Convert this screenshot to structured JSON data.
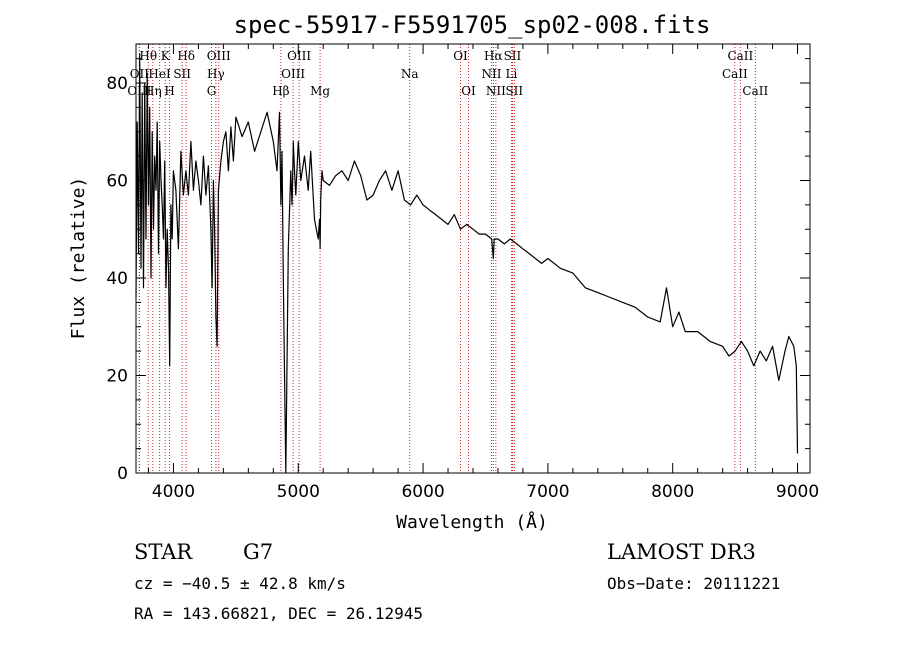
{
  "chart_data": {
    "type": "line",
    "title": "spec-55917-F5591705_sp02-008.fits",
    "xlabel": "Wavelength (Å)",
    "ylabel": "Flux (relative)",
    "xlim": [
      3700,
      9100
    ],
    "ylim": [
      0,
      88
    ],
    "xticks": [
      4000,
      5000,
      6000,
      7000,
      8000,
      9000
    ],
    "yticks": [
      0,
      20,
      40,
      60,
      80
    ],
    "series": [
      {
        "name": "flux",
        "x": [
          3700,
          3710,
          3720,
          3730,
          3740,
          3750,
          3760,
          3770,
          3780,
          3790,
          3800,
          3810,
          3820,
          3830,
          3840,
          3850,
          3860,
          3870,
          3880,
          3890,
          3900,
          3910,
          3920,
          3930,
          3940,
          3950,
          3960,
          3970,
          3980,
          3990,
          4000,
          4020,
          4040,
          4060,
          4080,
          4100,
          4120,
          4140,
          4160,
          4180,
          4200,
          4220,
          4240,
          4260,
          4280,
          4300,
          4310,
          4320,
          4330,
          4340,
          4350,
          4360,
          4380,
          4400,
          4420,
          4440,
          4460,
          4480,
          4500,
          4550,
          4600,
          4650,
          4700,
          4750,
          4800,
          4830,
          4850,
          4861,
          4870,
          4880,
          4900,
          4920,
          4940,
          4950,
          4955,
          4960,
          4970,
          4980,
          5000,
          5020,
          5050,
          5080,
          5100,
          5130,
          5160,
          5170,
          5175,
          5180,
          5183,
          5190,
          5200,
          5250,
          5300,
          5350,
          5400,
          5450,
          5500,
          5550,
          5600,
          5650,
          5700,
          5750,
          5800,
          5850,
          5900,
          5950,
          6000,
          6050,
          6100,
          6150,
          6200,
          6250,
          6300,
          6350,
          6400,
          6450,
          6500,
          6550,
          6563,
          6570,
          6600,
          6650,
          6700,
          6750,
          6800,
          6850,
          6900,
          6950,
          7000,
          7100,
          7200,
          7300,
          7400,
          7500,
          7600,
          7700,
          7800,
          7900,
          7950,
          8000,
          8050,
          8100,
          8200,
          8300,
          8400,
          8450,
          8500,
          8550,
          8600,
          8650,
          8700,
          8750,
          8800,
          8850,
          8900,
          8930,
          8950,
          8970,
          8990,
          9000
        ],
        "values": [
          36,
          72,
          45,
          86,
          42,
          78,
          38,
          80,
          48,
          82,
          55,
          75,
          40,
          70,
          50,
          65,
          58,
          72,
          45,
          68,
          60,
          55,
          48,
          64,
          38,
          50,
          42,
          22,
          55,
          48,
          62,
          58,
          46,
          66,
          57,
          62,
          57,
          68,
          58,
          64,
          60,
          55,
          65,
          57,
          63,
          50,
          38,
          60,
          50,
          32,
          26,
          58,
          64,
          68,
          70,
          62,
          71,
          64,
          73,
          69,
          72,
          66,
          70,
          74,
          68,
          62,
          74,
          55,
          66,
          40,
          0,
          46,
          62,
          55,
          60,
          68,
          62,
          57,
          68,
          60,
          65,
          58,
          66,
          52,
          48,
          52,
          46,
          56,
          58,
          62,
          60,
          59,
          61,
          62,
          60,
          64,
          61,
          56,
          57,
          60,
          62,
          58,
          62,
          56,
          55,
          57,
          55,
          54,
          53,
          52,
          51,
          53,
          50,
          51,
          50,
          49,
          49,
          48,
          44,
          48,
          48,
          47,
          48,
          47,
          46,
          45,
          44,
          43,
          44,
          42,
          41,
          38,
          37,
          36,
          35,
          34,
          32,
          31,
          38,
          30,
          33,
          29,
          29,
          27,
          26,
          24,
          25,
          27,
          25,
          22,
          25,
          23,
          26,
          19,
          25,
          28,
          27,
          26,
          22,
          4
        ]
      }
    ],
    "line_markers": [
      {
        "label": "Hθ",
        "x": 3798,
        "row": 0
      },
      {
        "label": "K",
        "x": 3934,
        "row": 0
      },
      {
        "label": "Hδ",
        "x": 4102,
        "row": 0
      },
      {
        "label": "OIII",
        "x": 4363,
        "row": 0
      },
      {
        "label": "OIII",
        "x": 5007,
        "row": 0
      },
      {
        "label": "OI",
        "x": 6300,
        "row": 0
      },
      {
        "label": "Hα",
        "x": 6563,
        "row": 0
      },
      {
        "label": "SII",
        "x": 6716,
        "row": 0
      },
      {
        "label": "CaII",
        "x": 8542,
        "row": 0
      },
      {
        "label": "OII",
        "x": 3727,
        "row": 1
      },
      {
        "label": "HeI",
        "x": 3889,
        "row": 1
      },
      {
        "label": "SII",
        "x": 4070,
        "row": 1
      },
      {
        "label": "Hγ",
        "x": 4340,
        "row": 1
      },
      {
        "label": "OIII",
        "x": 4959,
        "row": 1
      },
      {
        "label": "Na",
        "x": 5893,
        "row": 1
      },
      {
        "label": "NII",
        "x": 6548,
        "row": 1
      },
      {
        "label": "Li",
        "x": 6708,
        "row": 1
      },
      {
        "label": "CaII",
        "x": 8498,
        "row": 1
      },
      {
        "label": "OIII",
        "x": 3727,
        "row": 2
      },
      {
        "label": "Hη",
        "x": 3835,
        "row": 2
      },
      {
        "label": "H",
        "x": 3969,
        "row": 2
      },
      {
        "label": "G",
        "x": 4305,
        "row": 2
      },
      {
        "label": "Hβ",
        "x": 4861,
        "row": 2
      },
      {
        "label": "Mg",
        "x": 5175,
        "row": 2
      },
      {
        "label": "OI",
        "x": 6364,
        "row": 2
      },
      {
        "label": "NII",
        "x": 6583,
        "row": 2
      },
      {
        "label": "SII",
        "x": 6731,
        "row": 2
      },
      {
        "label": "CaII",
        "x": 8662,
        "row": 2
      }
    ],
    "grid": false
  },
  "info": {
    "object_class": "STAR",
    "subclass": "G7",
    "survey": "LAMOST DR3",
    "cz": "cz = −40.5 ± 42.8 km/s",
    "obs_date": "Obs−Date: 20111221",
    "coords": "RA = 143.66821, DEC =  26.12945"
  },
  "colors": {
    "axis": "#000000",
    "spectrum": "#000000",
    "marker_line": "#cc2222"
  }
}
